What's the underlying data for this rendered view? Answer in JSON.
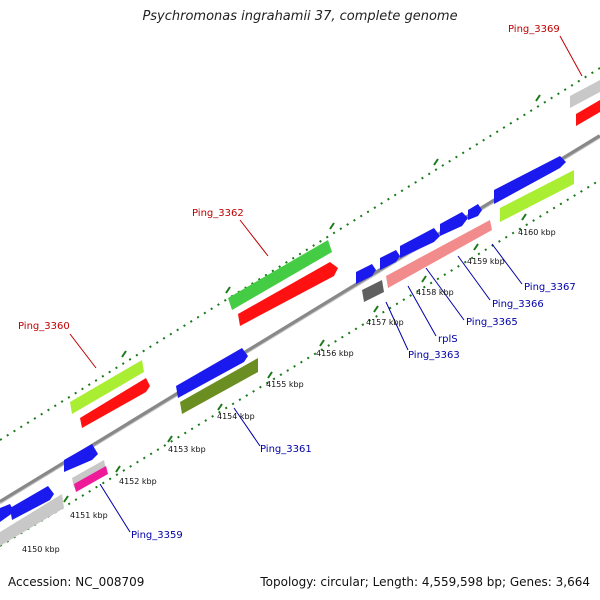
{
  "title": "Psychromonas ingrahamii 37, complete genome",
  "footer": {
    "accession": "Accession: NC_008709",
    "summary": "Topology: circular; Length: 4,559,598 bp; Genes: 3,664"
  },
  "colors": {
    "blue": "#1a1aee",
    "red": "#ff1111",
    "green": "#44cc44",
    "lime": "#aaee33",
    "olive": "#6b8e23",
    "pink": "#f28b8b",
    "magenta": "#ee1a99",
    "gray": "#c8c8c8",
    "darkgray": "#606060",
    "backbone": "#888888"
  },
  "ticks": [
    {
      "label": "4150 kbp"
    },
    {
      "label": "4151 kbp"
    },
    {
      "label": "4152 kbp"
    },
    {
      "label": "4153 kbp"
    },
    {
      "label": "4154 kbp"
    },
    {
      "label": "4155 kbp"
    },
    {
      "label": "4156 kbp"
    },
    {
      "label": "4157 kbp"
    },
    {
      "label": "4158 kbp"
    },
    {
      "label": "4159 kbp"
    },
    {
      "label": "4160 kbp"
    }
  ],
  "labels": [
    {
      "text": "Ping_3369"
    },
    {
      "text": "Ping_3362"
    },
    {
      "text": "Ping_3360"
    },
    {
      "text": "Ping_3367"
    },
    {
      "text": "Ping_3366"
    },
    {
      "text": "Ping_3365"
    },
    {
      "text": "rplS"
    },
    {
      "text": "Ping_3363"
    },
    {
      "text": "Ping_3361"
    },
    {
      "text": "Ping_3359"
    }
  ]
}
